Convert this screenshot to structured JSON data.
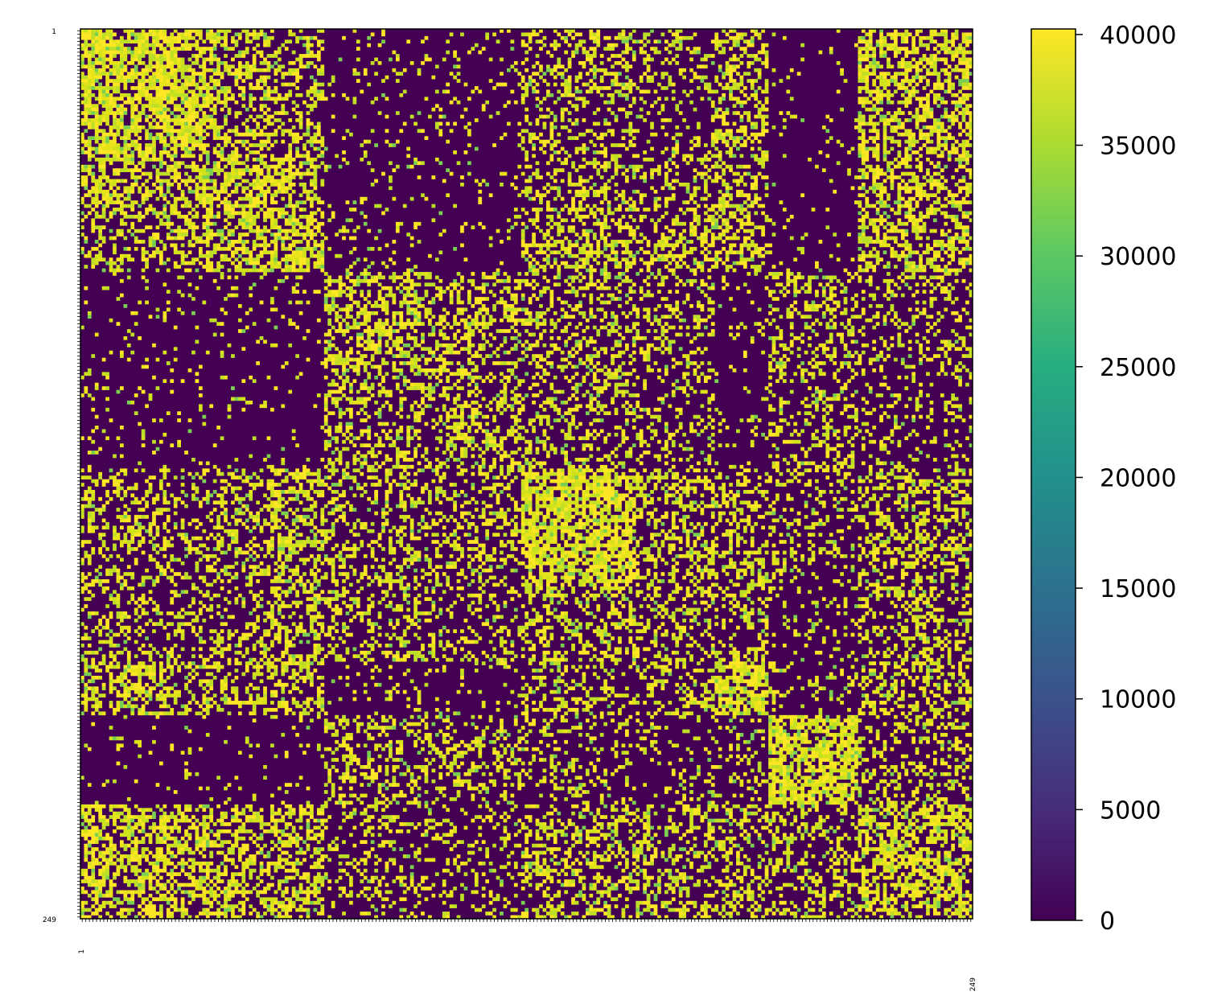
{
  "chart_data": {
    "type": "heatmap",
    "rows": 249,
    "cols": 249,
    "row_labels_first": "1",
    "row_labels_last": "249",
    "col_labels_first": "1",
    "col_labels_last": "249",
    "value_range": [
      0,
      40250
    ],
    "colormap": "viridis",
    "colorbar": {
      "ticks": [
        0,
        5000,
        10000,
        15000,
        20000,
        25000,
        30000,
        35000,
        40000
      ],
      "tick_labels": [
        "0",
        "5000",
        "10000",
        "15000",
        "20000",
        "25000",
        "30000",
        "35000",
        "40000"
      ]
    },
    "low_color": "#440154",
    "high_color": "#fde725",
    "title": "",
    "xlabel": "",
    "ylabel": ""
  }
}
